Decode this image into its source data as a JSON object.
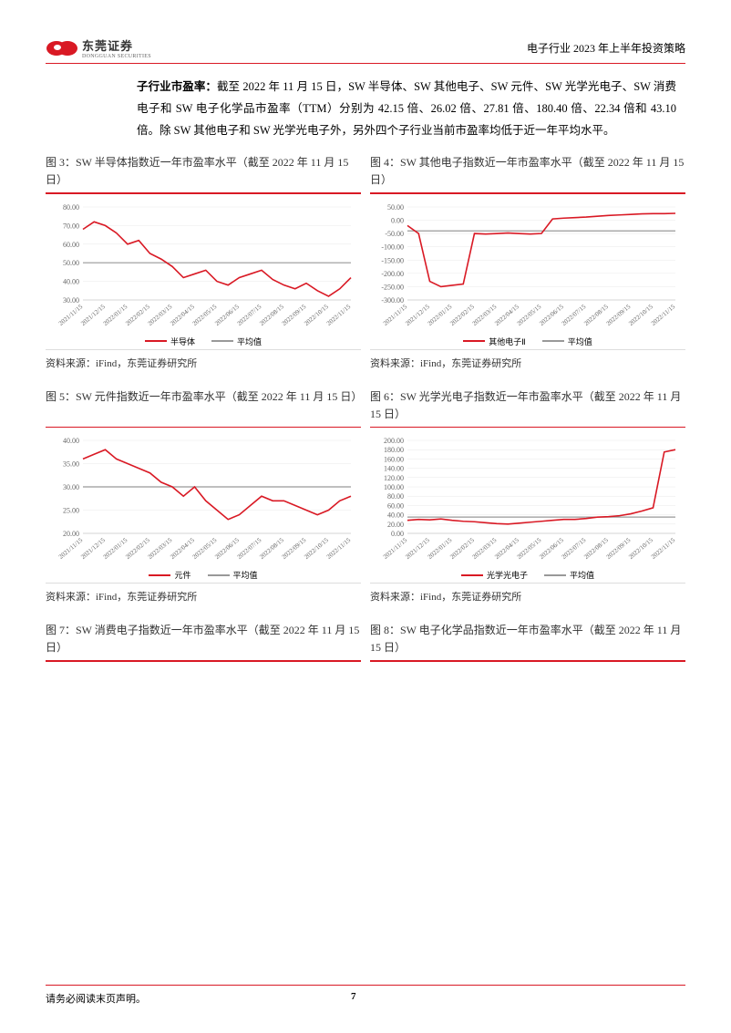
{
  "header": {
    "logo_text": "东莞证券",
    "logo_sub": "DONGGUAN SECURITIES",
    "title": "电子行业 2023 年上半年投资策略"
  },
  "body": {
    "label": "子行业市盈率：",
    "text": "截至 2022 年 11 月 15 日，SW 半导体、SW 其他电子、SW 元件、SW 光学光电子、SW 消费电子和 SW 电子化学品市盈率（TTM）分别为 42.15 倍、26.02 倍、27.81 倍、180.40 倍、22.34 倍和 43.10 倍。除 SW 其他电子和 SW 光学光电子外，另外四个子行业当前市盈率均低于近一年平均水平。"
  },
  "xcats": [
    "2021/11/15",
    "2021/12/15",
    "2022/01/15",
    "2022/02/15",
    "2022/03/15",
    "2022/04/15",
    "2022/05/15",
    "2022/06/15",
    "2022/07/15",
    "2022/08/15",
    "2022/09/15",
    "2022/10/15",
    "2022/11/15"
  ],
  "charts": {
    "c3": {
      "title": "图 3：SW 半导体指数近一年市盈率水平（截至 2022 年 11 月 15 日）",
      "series_name": "半导体",
      "avg_name": "平均值",
      "ylim": [
        30,
        80
      ],
      "yticks": [
        30,
        40,
        50,
        60,
        70,
        80
      ],
      "values": [
        68,
        72,
        70,
        66,
        60,
        62,
        55,
        52,
        48,
        42,
        44,
        46,
        40,
        38,
        42,
        44,
        46,
        41,
        38,
        36,
        39,
        35,
        32,
        36,
        42
      ],
      "avg": 50,
      "line_color": "#d91924",
      "avg_color": "#999999",
      "bg": "#ffffff",
      "grid": "#e8e8e8"
    },
    "c4": {
      "title": "图 4：SW 其他电子指数近一年市盈率水平（截至 2022 年 11 月 15 日）",
      "series_name": "其他电子Ⅱ",
      "avg_name": "平均值",
      "ylim": [
        -300,
        50
      ],
      "yticks": [
        -300,
        -250,
        -200,
        -150,
        -100,
        -50,
        0,
        50
      ],
      "values": [
        -20,
        -50,
        -230,
        -250,
        -245,
        -240,
        -50,
        -52,
        -50,
        -48,
        -50,
        -52,
        -50,
        5,
        8,
        10,
        12,
        15,
        18,
        20,
        22,
        24,
        25,
        25,
        26
      ],
      "avg": -40,
      "line_color": "#d91924",
      "avg_color": "#999999",
      "bg": "#ffffff",
      "grid": "#e8e8e8"
    },
    "c5": {
      "title": "图 5：SW 元件指数近一年市盈率水平（截至 2022 年 11 月 15 日）",
      "series_name": "元件",
      "avg_name": "平均值",
      "ylim": [
        20,
        40
      ],
      "yticks": [
        20,
        25,
        30,
        35,
        40
      ],
      "values": [
        36,
        37,
        38,
        36,
        35,
        34,
        33,
        31,
        30,
        28,
        30,
        27,
        25,
        23,
        24,
        26,
        28,
        27,
        27,
        26,
        25,
        24,
        25,
        27,
        28
      ],
      "avg": 30,
      "line_color": "#d91924",
      "avg_color": "#999999",
      "bg": "#ffffff",
      "grid": "#e8e8e8"
    },
    "c6": {
      "title": "图 6：SW 光学光电子指数近一年市盈率水平（截至 2022 年 11 月 15 日）",
      "series_name": "光学光电子",
      "avg_name": "平均值",
      "ylim": [
        0,
        200
      ],
      "yticks": [
        0,
        20,
        40,
        60,
        80,
        100,
        120,
        140,
        160,
        180,
        200
      ],
      "values": [
        28,
        30,
        29,
        31,
        28,
        26,
        25,
        23,
        21,
        20,
        22,
        24,
        26,
        28,
        30,
        30,
        32,
        35,
        36,
        38,
        42,
        48,
        55,
        175,
        180
      ],
      "avg": 35,
      "line_color": "#d91924",
      "avg_color": "#999999",
      "bg": "#ffffff",
      "grid": "#e8e8e8"
    },
    "c7": {
      "title": "图 7：SW 消费电子指数近一年市盈率水平（截至 2022 年 11 月 15 日）"
    },
    "c8": {
      "title": "图 8：SW 电子化学品指数近一年市盈率水平（截至 2022 年 11 月 15 日）"
    }
  },
  "source": "资料来源：iFind，东莞证券研究所",
  "footer": {
    "disclaimer": "请务必阅读末页声明。",
    "page": "7"
  }
}
